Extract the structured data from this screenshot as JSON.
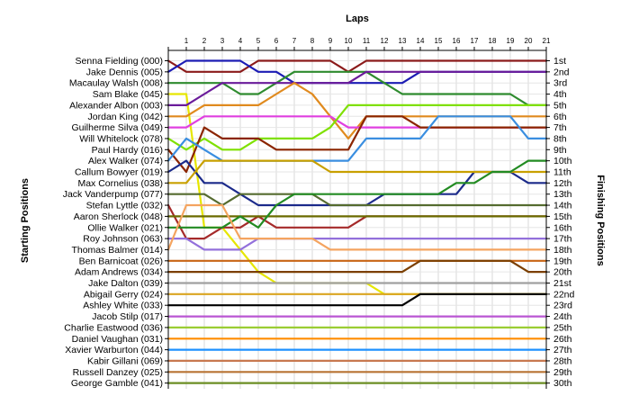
{
  "chart_data": {
    "type": "line",
    "title": "Laps",
    "ylabel_left": "Starting Positions",
    "ylabel_right": "Finishing Positions",
    "x": [
      0,
      1,
      2,
      3,
      4,
      5,
      6,
      7,
      8,
      9,
      10,
      11,
      12,
      13,
      14,
      15,
      16,
      17,
      18,
      19,
      20,
      21
    ],
    "x_tick_labels": [
      "1",
      "2",
      "3",
      "4",
      "5",
      "6",
      "7",
      "8",
      "9",
      "10",
      "11",
      "12",
      "13",
      "14",
      "15",
      "16",
      "17",
      "18",
      "19",
      "20",
      "21"
    ],
    "drivers": [
      "Senna Fielding (000)",
      "Jake Dennis (005)",
      "Macaulay Walsh (008)",
      "Sam Blake (045)",
      "Alexander Albon (003)",
      "Jordan King (042)",
      "Guilherme Silva (049)",
      "Will Whitelock (078)",
      "Paul Hardy (016)",
      "Alex Walker (074)",
      "Callum Bowyer (019)",
      "Max Cornelius (038)",
      "Jack Vanderpump (077)",
      "Stefan Lyttle (032)",
      "Aaron Sherlock (048)",
      "Ollie Walker (021)",
      "Roy Johnson (063)",
      "Thomas Balmer (014)",
      "Ben Barnicoat (026)",
      "Adam Andrews (034)",
      "Jake Dalton (039)",
      "Abigail Gerry (024)",
      "Ashley White (033)",
      "Jacob Stilp (017)",
      "Charlie Eastwood (036)",
      "Daniel Vaughan (031)",
      "Xavier Warburton (044)",
      "Kabir Gillani (069)",
      "Russell Danzey (025)",
      "George Gamble (041)"
    ],
    "finishing_labels": [
      "1st",
      "2nd",
      "3rd",
      "4th",
      "5th",
      "6th",
      "7th",
      "8th",
      "9th",
      "10th",
      "11th",
      "12th",
      "13th",
      "14th",
      "15th",
      "16th",
      "17th",
      "18th",
      "19th",
      "20th",
      "21st",
      "22nd",
      "23rd",
      "24th",
      "25th",
      "26th",
      "27th",
      "28th",
      "29th",
      "30th"
    ],
    "series": [
      {
        "color": "#8B1A1A",
        "positions": [
          1,
          2,
          2,
          2,
          2,
          1,
          1,
          1,
          1,
          1,
          2,
          1,
          1,
          1,
          1,
          1,
          1,
          1,
          1,
          1,
          1,
          1
        ]
      },
      {
        "color": "#1C1CB4",
        "positions": [
          2,
          1,
          1,
          1,
          1,
          2,
          2,
          3,
          3,
          3,
          3,
          3,
          3,
          3,
          2,
          2,
          2,
          2,
          2,
          2,
          2,
          2
        ]
      },
      {
        "color": "#2E8B2E",
        "positions": [
          3,
          3,
          3,
          3,
          4,
          4,
          3,
          2,
          2,
          2,
          2,
          2,
          3,
          4,
          4,
          4,
          4,
          4,
          4,
          4,
          5,
          5
        ]
      },
      {
        "color": "#E6E600",
        "positions": [
          4,
          4,
          16,
          16,
          18,
          20,
          21,
          21,
          21,
          21,
          21,
          21,
          22,
          22,
          22,
          22,
          22,
          22,
          22,
          22,
          22,
          22
        ]
      },
      {
        "color": "#6A1B9A",
        "positions": [
          5,
          5,
          4,
          3,
          3,
          3,
          3,
          3,
          3,
          3,
          3,
          2,
          2,
          2,
          2,
          2,
          2,
          2,
          2,
          2,
          2,
          2
        ]
      },
      {
        "color": "#E08A1E",
        "positions": [
          6,
          6,
          5,
          5,
          5,
          5,
          4,
          3,
          4,
          6,
          8,
          6,
          6,
          6,
          6,
          6,
          6,
          6,
          6,
          6,
          6,
          6
        ]
      },
      {
        "color": "#E040E0",
        "positions": [
          7,
          7,
          6,
          6,
          6,
          6,
          6,
          6,
          6,
          6,
          7,
          7,
          7,
          7,
          7,
          7,
          7,
          7,
          7,
          7,
          7,
          7
        ]
      },
      {
        "color": "#7FE000",
        "positions": [
          8,
          9,
          8,
          9,
          9,
          8,
          8,
          8,
          8,
          7,
          5,
          5,
          5,
          5,
          5,
          5,
          5,
          5,
          5,
          5,
          5,
          5
        ]
      },
      {
        "color": "#8B2500",
        "positions": [
          9,
          11,
          7,
          8,
          8,
          8,
          9,
          9,
          9,
          9,
          9,
          6,
          6,
          6,
          7,
          7,
          7,
          7,
          7,
          7,
          7,
          7
        ]
      },
      {
        "color": "#3A8EE0",
        "positions": [
          10,
          8,
          9,
          10,
          10,
          10,
          10,
          10,
          10,
          10,
          10,
          8,
          8,
          8,
          8,
          6,
          6,
          6,
          6,
          6,
          8,
          8
        ]
      },
      {
        "color": "#1B2A8A",
        "positions": [
          11,
          10,
          12,
          12,
          13,
          14,
          14,
          14,
          14,
          14,
          14,
          14,
          13,
          13,
          13,
          13,
          13,
          11,
          11,
          11,
          12,
          12
        ]
      },
      {
        "color": "#C8A000",
        "positions": [
          12,
          12,
          10,
          10,
          10,
          10,
          10,
          10,
          10,
          11,
          11,
          11,
          11,
          11,
          11,
          11,
          11,
          11,
          11,
          11,
          11,
          11
        ]
      },
      {
        "color": "#556B2F",
        "positions": [
          13,
          13,
          13,
          14,
          13,
          13,
          13,
          13,
          13,
          14,
          14,
          14,
          14,
          14,
          14,
          14,
          14,
          14,
          14,
          14,
          14,
          14
        ]
      },
      {
        "color": "#A52A2A",
        "positions": [
          14,
          17,
          17,
          16,
          16,
          15,
          16,
          16,
          16,
          16,
          16,
          15,
          15,
          15,
          15,
          15,
          15,
          15,
          15,
          15,
          15,
          15
        ]
      },
      {
        "color": "#6B6B00",
        "positions": [
          15,
          15,
          15,
          15,
          15,
          15,
          15,
          15,
          15,
          15,
          15,
          15,
          15,
          15,
          15,
          15,
          15,
          15,
          15,
          15,
          15,
          15
        ]
      },
      {
        "color": "#228B22",
        "positions": [
          16,
          16,
          16,
          16,
          15,
          16,
          14,
          13,
          13,
          13,
          13,
          13,
          13,
          13,
          13,
          13,
          12,
          12,
          11,
          11,
          10,
          10
        ]
      },
      {
        "color": "#9370DB",
        "positions": [
          17,
          17,
          18,
          18,
          18,
          17,
          17,
          17,
          17,
          17,
          17,
          17,
          17,
          17,
          17,
          17,
          17,
          17,
          17,
          17,
          17,
          17
        ]
      },
      {
        "color": "#F4A460",
        "positions": [
          18,
          14,
          14,
          14,
          17,
          17,
          17,
          17,
          17,
          18,
          18,
          18,
          18,
          18,
          18,
          18,
          18,
          18,
          18,
          18,
          18,
          18
        ]
      },
      {
        "color": "#C86414",
        "positions": [
          19,
          19,
          19,
          19,
          19,
          19,
          19,
          19,
          19,
          19,
          19,
          19,
          19,
          19,
          19,
          19,
          19,
          19,
          19,
          19,
          19,
          19
        ]
      },
      {
        "color": "#7B3F00",
        "positions": [
          20,
          20,
          20,
          20,
          20,
          20,
          20,
          20,
          20,
          20,
          20,
          20,
          20,
          20,
          19,
          19,
          19,
          19,
          19,
          19,
          20,
          20
        ]
      },
      {
        "color": "#A0A0A0",
        "positions": [
          21,
          21,
          21,
          21,
          21,
          21,
          21,
          21,
          21,
          21,
          21,
          21,
          21,
          21,
          21,
          21,
          21,
          21,
          21,
          21,
          21,
          21
        ]
      },
      {
        "color": "#DAA520",
        "positions": [
          22,
          22,
          22,
          22,
          22,
          22,
          22,
          22,
          22,
          22,
          22,
          22,
          22,
          22,
          22,
          22,
          22,
          22,
          22,
          22,
          22,
          22
        ]
      },
      {
        "color": "#000000",
        "positions": [
          23,
          23,
          23,
          23,
          23,
          23,
          23,
          23,
          23,
          23,
          23,
          23,
          23,
          23,
          22,
          22,
          22,
          22,
          22,
          22,
          22,
          22
        ]
      },
      {
        "color": "#BA55D3",
        "positions": [
          24,
          24,
          24,
          24,
          24,
          24,
          24,
          24,
          24,
          24,
          24,
          24,
          24,
          24,
          24,
          24,
          24,
          24,
          24,
          24,
          24,
          24
        ]
      },
      {
        "color": "#9ACD32",
        "positions": [
          25,
          25,
          25,
          25,
          25,
          25,
          25,
          25,
          25,
          25,
          25,
          25,
          25,
          25,
          25,
          25,
          25,
          25,
          25,
          25,
          25,
          25
        ]
      },
      {
        "color": "#FF8C00",
        "positions": [
          26,
          26,
          26,
          26,
          26,
          26,
          26,
          26,
          26,
          26,
          26,
          26,
          26,
          26,
          26,
          26,
          26,
          26,
          26,
          26,
          26,
          26
        ]
      },
      {
        "color": "#1E90FF",
        "positions": [
          27,
          27,
          27,
          27,
          27,
          27,
          27,
          27,
          27,
          27,
          27,
          27,
          27,
          27,
          27,
          27,
          27,
          27,
          27,
          27,
          27,
          27
        ]
      },
      {
        "color": "#C87850",
        "positions": [
          28,
          28,
          28,
          28,
          28,
          28,
          28,
          28,
          28,
          28,
          28,
          28,
          28,
          28,
          28,
          28,
          28,
          28,
          28,
          28,
          28,
          28
        ]
      },
      {
        "color": "#B87333",
        "positions": [
          29,
          29,
          29,
          29,
          29,
          29,
          29,
          29,
          29,
          29,
          29,
          29,
          29,
          29,
          29,
          29,
          29,
          29,
          29,
          29,
          29,
          29
        ]
      },
      {
        "color": "#6B8E23",
        "positions": [
          30,
          30,
          30,
          30,
          30,
          30,
          30,
          30,
          30,
          30,
          30,
          30,
          30,
          30,
          30,
          30,
          30,
          30,
          30,
          30,
          30,
          30
        ]
      }
    ]
  }
}
